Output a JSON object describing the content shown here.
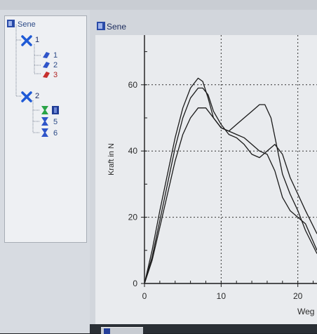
{
  "tree": {
    "root_label": "Sene",
    "groups": [
      {
        "label": "1",
        "items": [
          {
            "label": "1"
          },
          {
            "label": "2"
          },
          {
            "label": "3"
          }
        ]
      },
      {
        "label": "2",
        "items": [
          {
            "label": ""
          },
          {
            "label": "5"
          },
          {
            "label": "6"
          }
        ]
      }
    ]
  },
  "chart_window": {
    "title": "Sene"
  },
  "chart_data": {
    "type": "line",
    "title": "",
    "xlabel": "Weg",
    "ylabel": "Kraft in N",
    "xlim": [
      0,
      22.5
    ],
    "ylim": [
      0,
      75
    ],
    "x_ticks": [
      0,
      10,
      20
    ],
    "y_ticks": [
      0,
      20,
      40,
      60
    ],
    "grid": "dotted",
    "legend": "none",
    "series": [
      {
        "x": [
          0,
          1,
          2,
          3,
          4,
          5,
          6,
          7,
          7.6,
          8.3,
          9,
          10,
          11,
          12,
          13,
          14,
          15,
          15.7,
          16.5,
          17.3,
          18,
          19,
          20,
          21,
          22.5
        ],
        "y": [
          0,
          10,
          22,
          33,
          44,
          53,
          59,
          62,
          61,
          56,
          50,
          47,
          46,
          48,
          50,
          52,
          54,
          54,
          50,
          41,
          33,
          27,
          22,
          16,
          9
        ]
      },
      {
        "x": [
          0,
          1,
          2,
          3,
          4,
          5,
          6,
          7,
          7.6,
          8.3,
          9,
          10,
          11,
          12,
          13,
          14,
          15,
          16,
          17,
          18,
          19,
          20,
          21,
          22.5
        ],
        "y": [
          0,
          8,
          19,
          30,
          41,
          50,
          56,
          59,
          59,
          57,
          52,
          48,
          45,
          44,
          42,
          39,
          38,
          40,
          42,
          39,
          32,
          27,
          22,
          15
        ]
      },
      {
        "x": [
          0,
          1,
          2,
          3,
          4,
          5,
          6,
          7,
          8,
          9,
          10,
          11,
          12,
          13,
          14,
          15,
          16,
          17,
          18,
          19,
          20,
          21,
          22.5
        ],
        "y": [
          0,
          7,
          17,
          27,
          37,
          45,
          50,
          53,
          53,
          50,
          47,
          46,
          45,
          44,
          42,
          40,
          39,
          34,
          26,
          22,
          20,
          18,
          10
        ]
      }
    ]
  }
}
